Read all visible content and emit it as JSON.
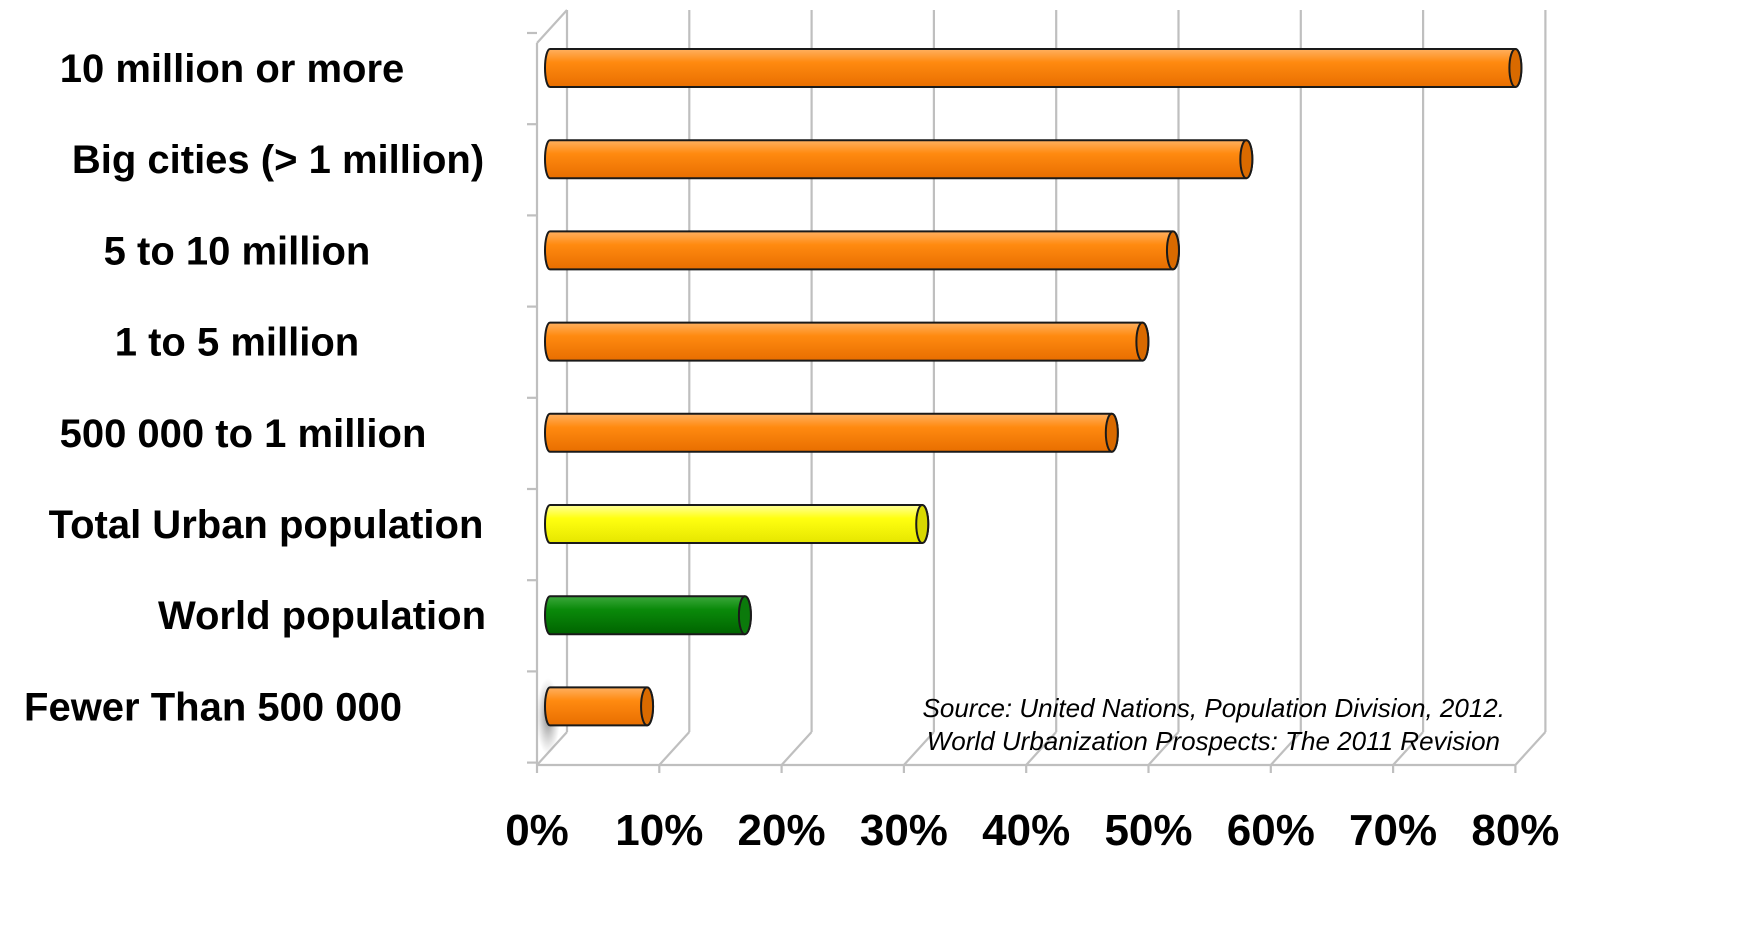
{
  "chart_data": {
    "type": "bar",
    "orientation": "horizontal",
    "style": "3d-cylinder",
    "categories": [
      "10 million or more",
      "Big cities (> 1 million)",
      "5 to 10 million",
      "1 to 5 million",
      "500 000 to 1 million",
      "Total Urban population",
      "World population",
      "Fewer Than 500 000"
    ],
    "values": [
      80,
      58,
      52,
      49.5,
      47,
      31.5,
      17,
      9
    ],
    "bar_colors": [
      "#FF8000",
      "#FF8000",
      "#FF8000",
      "#FF8000",
      "#FF8000",
      "#FFFF00",
      "#008000",
      "#FF8000"
    ],
    "xticks": [
      "0%",
      "10%",
      "20%",
      "30%",
      "40%",
      "50%",
      "60%",
      "70%",
      "80%"
    ],
    "xlim": [
      0,
      80
    ],
    "unit": "%",
    "grid": true,
    "title": "",
    "xlabel": "",
    "ylabel": "",
    "annotation": [
      "Source: United Nations, Population Division, 2012.",
      "World Urbanization Prospects: The 2011 Revision"
    ]
  },
  "colors": {
    "orange": "#FF8000",
    "yellow": "#FFFF00",
    "green": "#008000",
    "grid": "#BFBFBF"
  }
}
